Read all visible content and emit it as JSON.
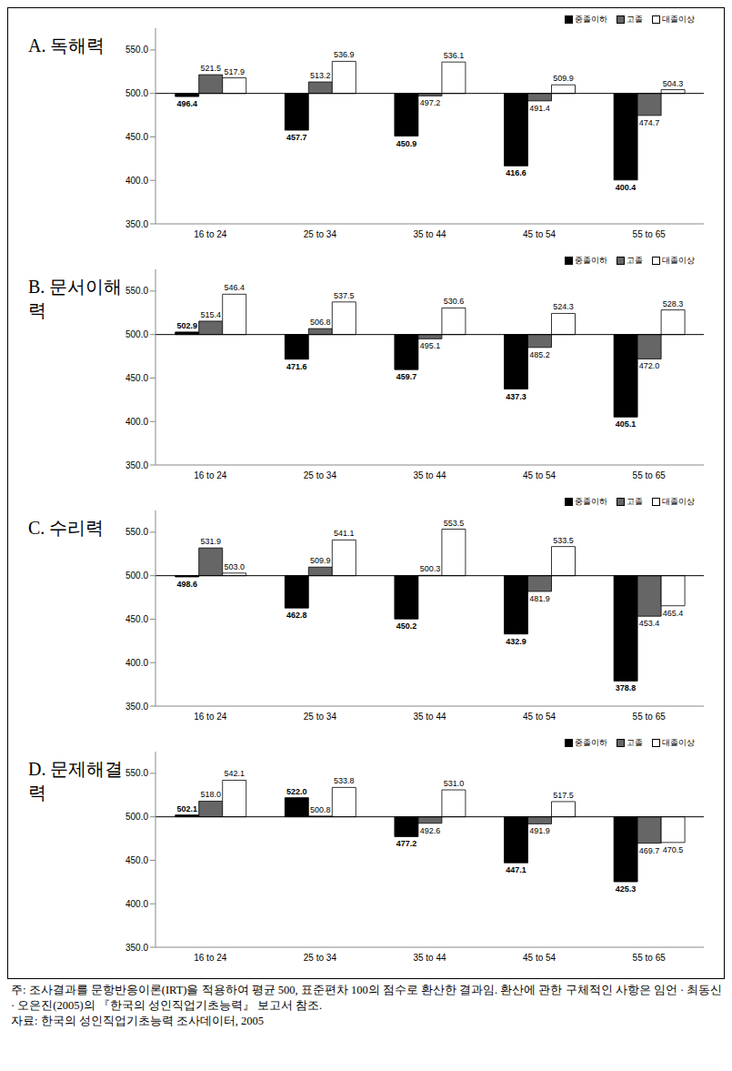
{
  "chart_data": [
    {
      "type": "bar",
      "title": "A. 독해력",
      "categories": [
        "16 to 24",
        "25 to 34",
        "35 to 44",
        "45 to 54",
        "55 to 65"
      ],
      "baseline": 500,
      "ylim": [
        350,
        575
      ],
      "yticks": [
        {
          "value": 350,
          "label": "350.0"
        },
        {
          "value": 400,
          "label": "400.0"
        },
        {
          "value": 450,
          "label": "450.0"
        },
        {
          "value": 500,
          "label": "500.0"
        },
        {
          "value": 550,
          "label": "550.0"
        }
      ],
      "grid": false,
      "legend": "upper right",
      "data_labels": true,
      "series": [
        {
          "name": "중졸이하",
          "color": "#000000",
          "values": [
            496.4,
            457.7,
            450.9,
            416.6,
            400.4
          ],
          "value_labels": [
            "496.4",
            "457.7",
            "450.9",
            "416.6",
            "400.4"
          ]
        },
        {
          "name": "고졸",
          "color": "#666666",
          "values": [
            521.5,
            513.2,
            497.2,
            491.4,
            474.7
          ],
          "value_labels": [
            "521.5",
            "513.2",
            "497.2",
            "491.4",
            "474.7"
          ]
        },
        {
          "name": "대졸이상",
          "color": "#ffffff",
          "values": [
            517.9,
            536.9,
            536.1,
            509.9,
            504.3
          ],
          "value_labels": [
            "517.9",
            "536.9",
            "536.1",
            "509.9",
            "504.3"
          ]
        }
      ]
    },
    {
      "type": "bar",
      "title": "B. 문서이해력",
      "categories": [
        "16 to 24",
        "25 to 34",
        "35 to 44",
        "45 to 54",
        "55 to 65"
      ],
      "baseline": 500,
      "ylim": [
        350,
        575
      ],
      "yticks": [
        {
          "value": 350,
          "label": "350.0"
        },
        {
          "value": 400,
          "label": "400.0"
        },
        {
          "value": 450,
          "label": "450.0"
        },
        {
          "value": 500,
          "label": "500.0"
        },
        {
          "value": 550,
          "label": "550.0"
        }
      ],
      "grid": false,
      "legend": "upper right",
      "data_labels": true,
      "series": [
        {
          "name": "중졸이하",
          "color": "#000000",
          "values": [
            502.9,
            471.6,
            459.7,
            437.3,
            405.1
          ],
          "value_labels": [
            "502.9",
            "471.6",
            "459.7",
            "437.3",
            "405.1"
          ]
        },
        {
          "name": "고졸",
          "color": "#666666",
          "values": [
            515.4,
            506.8,
            495.1,
            485.2,
            472.0
          ],
          "value_labels": [
            "515.4",
            "506.8",
            "495.1",
            "485.2",
            "472.0"
          ]
        },
        {
          "name": "대졸이상",
          "color": "#ffffff",
          "values": [
            546.4,
            537.5,
            530.6,
            524.3,
            528.3
          ],
          "value_labels": [
            "546.4",
            "537.5",
            "530.6",
            "524.3",
            "528.3"
          ]
        }
      ]
    },
    {
      "type": "bar",
      "title": "C. 수리력",
      "categories": [
        "16 to 24",
        "25 to 34",
        "35 to 44",
        "45 to 54",
        "55 to 65"
      ],
      "baseline": 500,
      "ylim": [
        350,
        575
      ],
      "yticks": [
        {
          "value": 350,
          "label": "350.0"
        },
        {
          "value": 400,
          "label": "400.0"
        },
        {
          "value": 450,
          "label": "450.0"
        },
        {
          "value": 500,
          "label": "500.0"
        },
        {
          "value": 550,
          "label": "550.0"
        }
      ],
      "grid": false,
      "legend": "upper right",
      "data_labels": true,
      "series": [
        {
          "name": "중졸이하",
          "color": "#000000",
          "values": [
            498.6,
            462.8,
            450.2,
            432.9,
            378.8
          ],
          "value_labels": [
            "498.6",
            "462.8",
            "450.2",
            "432.9",
            "378.8"
          ]
        },
        {
          "name": "고졸",
          "color": "#666666",
          "values": [
            531.9,
            509.9,
            500.3,
            481.9,
            453.4
          ],
          "value_labels": [
            "531.9",
            "509.9",
            "500.3",
            "481.9",
            "453.4"
          ]
        },
        {
          "name": "대졸이상",
          "color": "#ffffff",
          "values": [
            503.0,
            541.1,
            553.5,
            533.5,
            465.4
          ],
          "value_labels": [
            "503.0",
            "541.1",
            "553.5",
            "533.5",
            "465.4"
          ]
        }
      ]
    },
    {
      "type": "bar",
      "title": "D. 문제해결력",
      "categories": [
        "16 to 24",
        "25 to 34",
        "35 to 44",
        "45 to 54",
        "55 to 65"
      ],
      "baseline": 500,
      "ylim": [
        350,
        575
      ],
      "yticks": [
        {
          "value": 350,
          "label": "350.0"
        },
        {
          "value": 400,
          "label": "400.0"
        },
        {
          "value": 450,
          "label": "450.0"
        },
        {
          "value": 500,
          "label": "500.0"
        },
        {
          "value": 550,
          "label": "550.0"
        }
      ],
      "grid": false,
      "legend": "upper right",
      "data_labels": true,
      "series": [
        {
          "name": "중졸이하",
          "color": "#000000",
          "values": [
            502.1,
            522.0,
            477.2,
            447.1,
            425.3
          ],
          "value_labels": [
            "502.1",
            "522.0",
            "477.2",
            "447.1",
            "425.3"
          ]
        },
        {
          "name": "고졸",
          "color": "#666666",
          "values": [
            518.0,
            500.8,
            492.6,
            491.9,
            469.7
          ],
          "value_labels": [
            "518.0",
            "500.8",
            "492.6",
            "491.9",
            "469.7"
          ]
        },
        {
          "name": "대졸이상",
          "color": "#ffffff",
          "values": [
            542.1,
            533.8,
            531.0,
            517.5,
            470.5
          ],
          "value_labels": [
            "542.1",
            "533.8",
            "531.0",
            "517.5",
            "470.5"
          ]
        }
      ]
    }
  ],
  "note": "주: 조사결과를 문항반응이론(IRT)을 적용하여 평균 500, 표준편차 100의 점수로 환산한 결과임. 환산에 관한 구체적인 사항은 임언 · 최동신 · 오은진(2005)의 『한국의 성인직업기초능력』 보고서 참조.",
  "source": "자료: 한국의 성인직업기초능력 조사데이터, 2005"
}
